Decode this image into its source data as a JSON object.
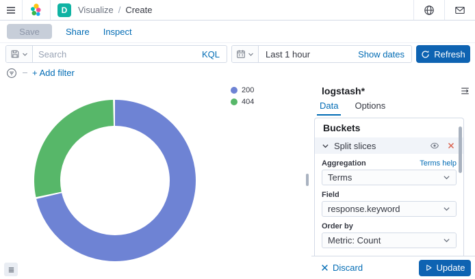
{
  "header": {
    "breadcrumb": {
      "section": "Visualize",
      "separator": "/",
      "current": "Create"
    },
    "space_badge": "D"
  },
  "toolbar": {
    "save_label": "Save",
    "share_label": "Share",
    "inspect_label": "Inspect"
  },
  "query_bar": {
    "search_placeholder": "Search",
    "language_label": "KQL",
    "time_range": "Last 1 hour",
    "show_dates_label": "Show dates",
    "refresh_label": "Refresh"
  },
  "filter_bar": {
    "add_filter_label": "+ Add filter"
  },
  "chart_data": {
    "type": "pie",
    "donut": true,
    "legend_position": "top-right-of-chart",
    "field": "response.keyword",
    "metric": "Count",
    "slices": [
      {
        "label": "200",
        "percent": 71.7,
        "color": "#6e83d4"
      },
      {
        "label": "404",
        "percent": 28.3,
        "color": "#57b769"
      }
    ]
  },
  "editor": {
    "index_pattern": "logstash*",
    "tabs": [
      {
        "label": "Data"
      },
      {
        "label": "Options"
      }
    ],
    "buckets": {
      "heading": "Buckets",
      "bucket_label": "Split slices",
      "aggregation_label": "Aggregation",
      "aggregation_help": "Terms help",
      "aggregation_value": "Terms",
      "field_label": "Field",
      "field_value": "response.keyword",
      "order_by_label": "Order by",
      "order_by_value": "Metric: Count"
    },
    "footer": {
      "discard_label": "Discard",
      "update_label": "Update"
    }
  },
  "colors": {
    "link": "#006BB4",
    "primary_button": "#0e63b2",
    "space_badge": "#10b3a3",
    "danger_icon": "#d9604c"
  }
}
